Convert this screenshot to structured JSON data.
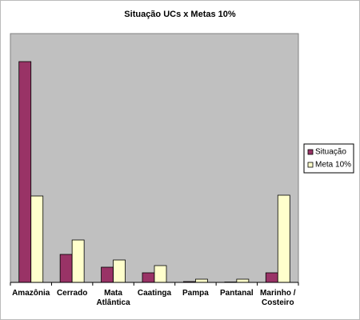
{
  "chart_data": {
    "type": "bar",
    "title": "Situação UCs x Metas 10%",
    "categories": [
      "Amazônia",
      "Cerrado",
      "Mata Atlântica",
      "Caatinga",
      "Pampa",
      "Pantanal",
      "Marinho / Costeiro"
    ],
    "series": [
      {
        "name": "Situação",
        "color": "#993366",
        "values": [
          276,
          35,
          19,
          12,
          1,
          0.5,
          12
        ]
      },
      {
        "name": "Meta 10%",
        "color": "#ffffcc",
        "values": [
          108,
          53,
          28,
          21,
          4,
          4,
          109
        ]
      }
    ],
    "ylim": [
      0,
      311
    ],
    "legend": "right"
  }
}
